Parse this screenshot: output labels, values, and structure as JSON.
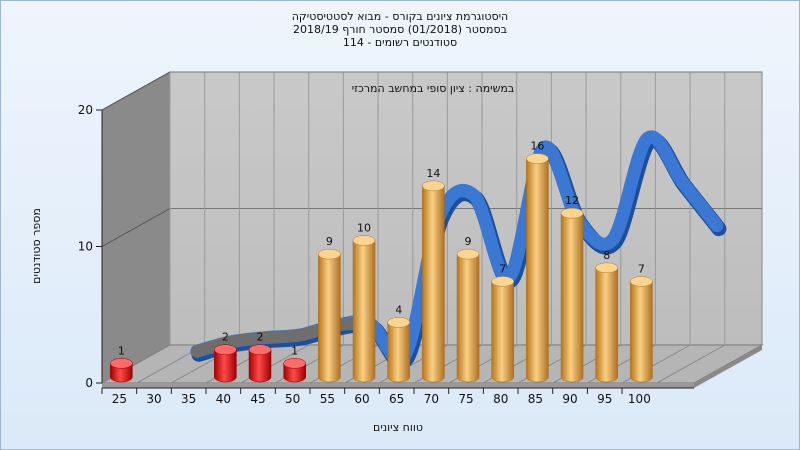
{
  "chart_data": {
    "type": "bar",
    "title_lines": [
      "היסטוגרמת ציונים בקורס - מבוא לסטטיסטיקה",
      "בסמסטר  (01/2018)  סמסטר חורף 2018/19",
      "סטודנטים רשומים - 114"
    ],
    "annotation": "במשימה : ציון סופי במחשב המרכזי",
    "xlabel": "טווח ציונים",
    "ylabel": "מספר סטודנטים",
    "x_ticks": [
      "25",
      "30",
      "35",
      "40",
      "45",
      "50",
      "55",
      "60",
      "65",
      "70",
      "75",
      "80",
      "85",
      "90",
      "95",
      "100"
    ],
    "y_ticks": [
      0,
      10,
      20
    ],
    "ylim": [
      0,
      20
    ],
    "series": [
      {
        "type": "bar",
        "categories": [
          "25",
          "40",
          "45",
          "50",
          "55",
          "60",
          "65",
          "70",
          "75",
          "80",
          "85",
          "90",
          "95",
          "100"
        ],
        "values": [
          1,
          2,
          2,
          1,
          9,
          10,
          4,
          14,
          9,
          7,
          16,
          12,
          8,
          7
        ],
        "labels": [
          "1",
          "2",
          "2",
          "1",
          "9",
          "10",
          "4",
          "14",
          "9",
          "7",
          "16",
          "12",
          "8",
          "7"
        ]
      },
      {
        "type": "line",
        "x": [
          30,
          35,
          40,
          45,
          50,
          55,
          60,
          65,
          70,
          75,
          80,
          85,
          90,
          95,
          100,
          105
        ],
        "values": [
          0.6,
          1.3,
          1.6,
          1.8,
          2.5,
          2.6,
          0.3,
          10.5,
          12,
          6,
          15.5,
          10.2,
          8.8,
          16.2,
          13,
          9.8
        ]
      }
    ],
    "colors": {
      "low_bar": "#e01010",
      "high_bar": "#e8a84a",
      "curve": "#3a78d4",
      "back_wall": "#c4c4c4",
      "side_wall": "#888888",
      "floor": "#b0b0b0"
    }
  }
}
